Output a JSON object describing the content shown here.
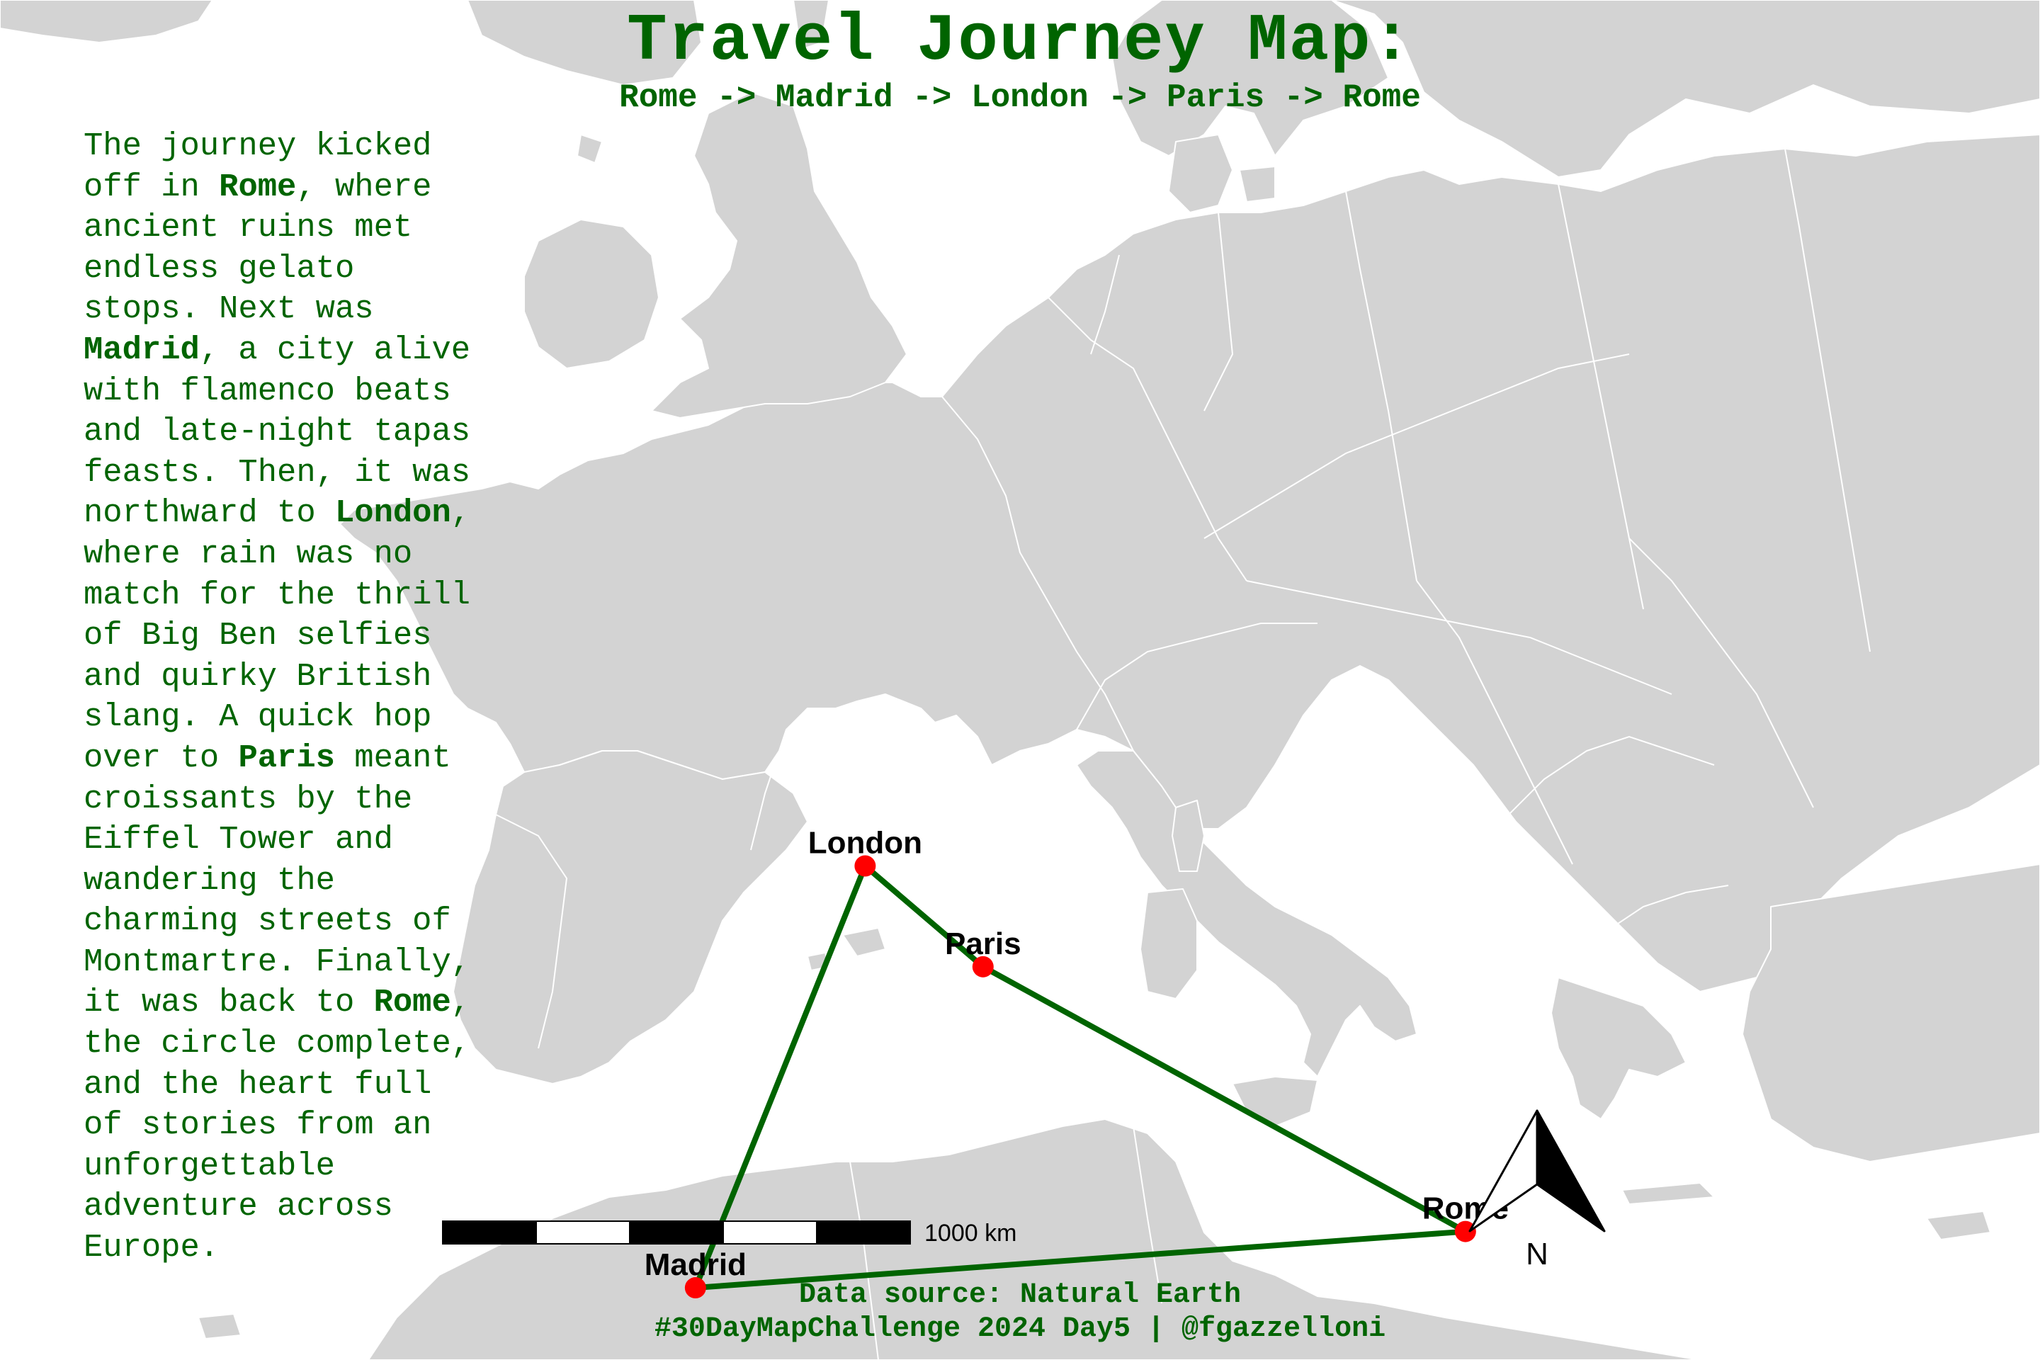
{
  "title": "Travel Journey Map:",
  "subtitle": "Rome -> Madrid -> London -> Paris -> Rome",
  "story": {
    "lines": [
      [
        {
          "t": "The journey kicked"
        }
      ],
      [
        {
          "t": "off in "
        },
        {
          "t": "Rome",
          "b": true
        },
        {
          "t": ", where"
        }
      ],
      [
        {
          "t": "ancient ruins met"
        }
      ],
      [
        {
          "t": "endless gelato"
        }
      ],
      [
        {
          "t": "stops. Next was"
        }
      ],
      [
        {
          "t": "Madrid",
          "b": true
        },
        {
          "t": ", a city alive"
        }
      ],
      [
        {
          "t": "with flamenco beats"
        }
      ],
      [
        {
          "t": "and late-night tapas"
        }
      ],
      [
        {
          "t": "feasts. Then, it was"
        }
      ],
      [
        {
          "t": "northward to "
        },
        {
          "t": "London",
          "b": true
        },
        {
          "t": ","
        }
      ],
      [
        {
          "t": "where rain was no"
        }
      ],
      [
        {
          "t": "match for the thrill"
        }
      ],
      [
        {
          "t": "of Big Ben selfies"
        }
      ],
      [
        {
          "t": "and quirky British"
        }
      ],
      [
        {
          "t": "slang. A quick hop"
        }
      ],
      [
        {
          "t": "over to "
        },
        {
          "t": "Paris",
          "b": true
        },
        {
          "t": " meant"
        }
      ],
      [
        {
          "t": "croissants by the"
        }
      ],
      [
        {
          "t": "Eiffel Tower and"
        }
      ],
      [
        {
          "t": "wandering the"
        }
      ],
      [
        {
          "t": "charming streets of"
        }
      ],
      [
        {
          "t": "Montmartre. Finally,"
        }
      ],
      [
        {
          "t": "it was back to "
        },
        {
          "t": "Rome",
          "b": true
        },
        {
          "t": ","
        }
      ],
      [
        {
          "t": "the circle complete,"
        }
      ],
      [
        {
          "t": "and the heart full"
        }
      ],
      [
        {
          "t": "of stories from an"
        }
      ],
      [
        {
          "t": "unforgettable"
        }
      ],
      [
        {
          "t": "adventure across"
        }
      ],
      [
        {
          "t": "Europe."
        }
      ]
    ]
  },
  "cities": [
    {
      "id": "london",
      "name": "London",
      "lon": -0.13,
      "lat": 51.51
    },
    {
      "id": "paris",
      "name": "Paris",
      "lon": 2.35,
      "lat": 48.86
    },
    {
      "id": "madrid",
      "name": "Madrid",
      "lon": -3.7,
      "lat": 40.42
    },
    {
      "id": "rome",
      "name": "Rome",
      "lon": 12.5,
      "lat": 41.9
    }
  ],
  "route": [
    "rome",
    "madrid",
    "london",
    "paris",
    "rome"
  ],
  "scale_bar": {
    "label": "1000 km"
  },
  "north_arrow": {
    "label": "N"
  },
  "caption": {
    "source": "Data source: Natural Earth",
    "credit": "#30DayMapChallenge 2024 Day5 | @fgazzelloni"
  },
  "colors": {
    "land": "#d3d3d3",
    "border": "#ffffff",
    "route": "#006400",
    "city_point": "#ff0000",
    "text": "#006400",
    "label": "#000000"
  }
}
